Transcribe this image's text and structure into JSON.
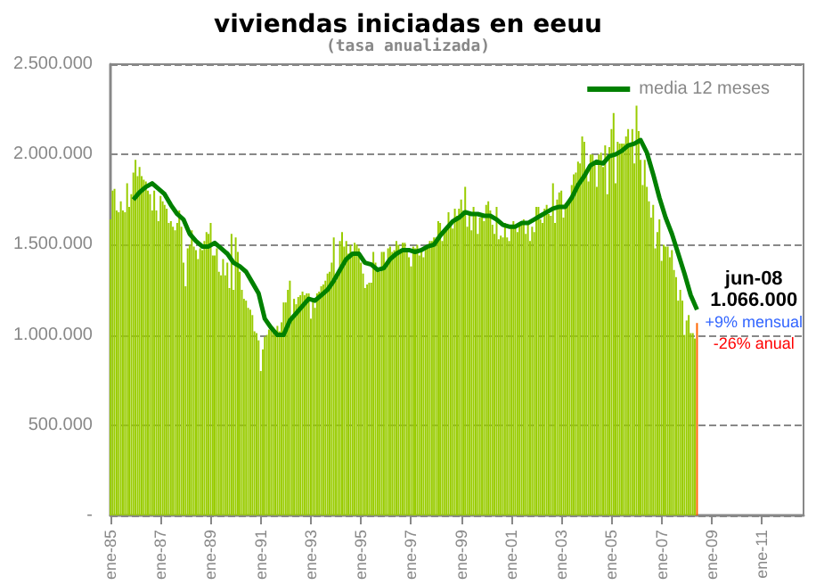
{
  "chart_data": {
    "type": "bar",
    "title": "viviendas iniciadas en eeuu",
    "subtitle": "(tasa anualizada)",
    "x": [
      "1985-01",
      "1985-02",
      "1985-03",
      "1985-04",
      "1985-05",
      "1985-06",
      "1985-07",
      "1985-08",
      "1985-09",
      "1985-10",
      "1985-11",
      "1985-12",
      "1986-01",
      "1986-02",
      "1986-03",
      "1986-04",
      "1986-05",
      "1986-06",
      "1986-07",
      "1986-08",
      "1986-09",
      "1986-10",
      "1986-11",
      "1986-12",
      "1987-01",
      "1987-02",
      "1987-03",
      "1987-04",
      "1987-05",
      "1987-06",
      "1987-07",
      "1987-08",
      "1987-09",
      "1987-10",
      "1987-11",
      "1987-12",
      "1988-01",
      "1988-02",
      "1988-03",
      "1988-04",
      "1988-05",
      "1988-06",
      "1988-07",
      "1988-08",
      "1988-09",
      "1988-10",
      "1988-11",
      "1988-12",
      "1989-01",
      "1989-02",
      "1989-03",
      "1989-04",
      "1989-05",
      "1989-06",
      "1989-07",
      "1989-08",
      "1989-09",
      "1989-10",
      "1989-11",
      "1989-12",
      "1990-01",
      "1990-02",
      "1990-03",
      "1990-04",
      "1990-05",
      "1990-06",
      "1990-07",
      "1990-08",
      "1990-09",
      "1990-10",
      "1990-11",
      "1990-12",
      "1991-01",
      "1991-02",
      "1991-03",
      "1991-04",
      "1991-05",
      "1991-06",
      "1991-07",
      "1991-08",
      "1991-09",
      "1991-10",
      "1991-11",
      "1991-12",
      "1992-01",
      "1992-02",
      "1992-03",
      "1992-04",
      "1992-05",
      "1992-06",
      "1992-07",
      "1992-08",
      "1992-09",
      "1992-10",
      "1992-11",
      "1992-12",
      "1993-01",
      "1993-02",
      "1993-03",
      "1993-04",
      "1993-05",
      "1993-06",
      "1993-07",
      "1993-08",
      "1993-09",
      "1993-10",
      "1993-11",
      "1993-12",
      "1994-01",
      "1994-02",
      "1994-03",
      "1994-04",
      "1994-05",
      "1994-06",
      "1994-07",
      "1994-08",
      "1994-09",
      "1994-10",
      "1994-11",
      "1994-12",
      "1995-01",
      "1995-02",
      "1995-03",
      "1995-04",
      "1995-05",
      "1995-06",
      "1995-07",
      "1995-08",
      "1995-09",
      "1995-10",
      "1995-11",
      "1995-12",
      "1996-01",
      "1996-02",
      "1996-03",
      "1996-04",
      "1996-05",
      "1996-06",
      "1996-07",
      "1996-08",
      "1996-09",
      "1996-10",
      "1996-11",
      "1996-12",
      "1997-01",
      "1997-02",
      "1997-03",
      "1997-04",
      "1997-05",
      "1997-06",
      "1997-07",
      "1997-08",
      "1997-09",
      "1997-10",
      "1997-11",
      "1997-12",
      "1998-01",
      "1998-02",
      "1998-03",
      "1998-04",
      "1998-05",
      "1998-06",
      "1998-07",
      "1998-08",
      "1998-09",
      "1998-10",
      "1998-11",
      "1998-12",
      "1999-01",
      "1999-02",
      "1999-03",
      "1999-04",
      "1999-05",
      "1999-06",
      "1999-07",
      "1999-08",
      "1999-09",
      "1999-10",
      "1999-11",
      "1999-12",
      "2000-01",
      "2000-02",
      "2000-03",
      "2000-04",
      "2000-05",
      "2000-06",
      "2000-07",
      "2000-08",
      "2000-09",
      "2000-10",
      "2000-11",
      "2000-12",
      "2001-01",
      "2001-02",
      "2001-03",
      "2001-04",
      "2001-05",
      "2001-06",
      "2001-07",
      "2001-08",
      "2001-09",
      "2001-10",
      "2001-11",
      "2001-12",
      "2002-01",
      "2002-02",
      "2002-03",
      "2002-04",
      "2002-05",
      "2002-06",
      "2002-07",
      "2002-08",
      "2002-09",
      "2002-10",
      "2002-11",
      "2002-12",
      "2003-01",
      "2003-02",
      "2003-03",
      "2003-04",
      "2003-05",
      "2003-06",
      "2003-07",
      "2003-08",
      "2003-09",
      "2003-10",
      "2003-11",
      "2003-12",
      "2004-01",
      "2004-02",
      "2004-03",
      "2004-04",
      "2004-05",
      "2004-06",
      "2004-07",
      "2004-08",
      "2004-09",
      "2004-10",
      "2004-11",
      "2004-12",
      "2005-01",
      "2005-02",
      "2005-03",
      "2005-04",
      "2005-05",
      "2005-06",
      "2005-07",
      "2005-08",
      "2005-09",
      "2005-10",
      "2005-11",
      "2005-12",
      "2006-01",
      "2006-02",
      "2006-03",
      "2006-04",
      "2006-05",
      "2006-06",
      "2006-07",
      "2006-08",
      "2006-09",
      "2006-10",
      "2006-11",
      "2006-12",
      "2007-01",
      "2007-02",
      "2007-03",
      "2007-04",
      "2007-05",
      "2007-06",
      "2007-07",
      "2007-08",
      "2007-09",
      "2007-10",
      "2007-11",
      "2007-12",
      "2008-01",
      "2008-02",
      "2008-03",
      "2008-04",
      "2008-05"
    ],
    "series": [
      {
        "color": "#99cc00",
        "values": [
          1640000,
          1800000,
          1810000,
          1690000,
          1680000,
          1740000,
          1690000,
          1680000,
          1840000,
          1710000,
          1780000,
          1900000,
          1970000,
          1880000,
          1930000,
          1880000,
          1860000,
          1850000,
          1800000,
          1780000,
          1690000,
          1800000,
          1690000,
          1630000,
          1770000,
          1740000,
          1720000,
          1700000,
          1620000,
          1630000,
          1600000,
          1580000,
          1620000,
          1690000,
          1600000,
          1400000,
          1270000,
          1480000,
          1500000,
          1580000,
          1490000,
          1470000,
          1420000,
          1480000,
          1470000,
          1520000,
          1570000,
          1560000,
          1620000,
          1440000,
          1440000,
          1480000,
          1350000,
          1330000,
          1420000,
          1330000,
          1400000,
          1260000,
          1560000,
          1250000,
          1540000,
          1460000,
          1350000,
          1250000,
          1200000,
          1190000,
          1150000,
          1140000,
          1110000,
          1020000,
          1010000,
          970000,
          800000,
          920000,
          990000,
          1000000,
          1030000,
          1050000,
          1040000,
          1020000,
          1050000,
          1020000,
          1070000,
          1180000,
          1180000,
          1250000,
          1300000,
          1100000,
          1200000,
          1170000,
          1210000,
          1220000,
          1240000,
          1220000,
          1230000,
          1230000,
          1090000,
          1200000,
          1150000,
          1230000,
          1240000,
          1270000,
          1280000,
          1300000,
          1340000,
          1350000,
          1400000,
          1540000,
          1300000,
          1350000,
          1520000,
          1570000,
          1490000,
          1520000,
          1450000,
          1500000,
          1460000,
          1510000,
          1500000,
          1480000,
          1400000,
          1340000,
          1260000,
          1280000,
          1290000,
          1290000,
          1460000,
          1400000,
          1370000,
          1350000,
          1460000,
          1460000,
          1380000,
          1480000,
          1490000,
          1460000,
          1470000,
          1520000,
          1500000,
          1460000,
          1510000,
          1510000,
          1470000,
          1430000,
          1380000,
          1490000,
          1480000,
          1500000,
          1440000,
          1480000,
          1430000,
          1490000,
          1490000,
          1520000,
          1520000,
          1540000,
          1540000,
          1630000,
          1620000,
          1520000,
          1570000,
          1590000,
          1680000,
          1610000,
          1590000,
          1700000,
          1660000,
          1700000,
          1750000,
          1690000,
          1820000,
          1600000,
          1680000,
          1580000,
          1710000,
          1680000,
          1560000,
          1650000,
          1650000,
          1630000,
          1720000,
          1740000,
          1690000,
          1610000,
          1560000,
          1710000,
          1530000,
          1550000,
          1540000,
          1620000,
          1540000,
          1520000,
          1600000,
          1630000,
          1610000,
          1570000,
          1620000,
          1630000,
          1640000,
          1560000,
          1610000,
          1520000,
          1600000,
          1570000,
          1710000,
          1710000,
          1640000,
          1620000,
          1700000,
          1720000,
          1670000,
          1660000,
          1840000,
          1620000,
          1750000,
          1790000,
          1800000,
          1650000,
          1730000,
          1720000,
          1740000,
          1830000,
          1890000,
          1900000,
          1960000,
          1950000,
          2100000,
          2070000,
          1910000,
          1850000,
          2000000,
          2000000,
          1960000,
          1820000,
          2000000,
          2010000,
          1930000,
          2050000,
          1780000,
          2040000,
          2140000,
          2230000,
          1840000,
          2070000,
          2060000,
          2060000,
          2060000,
          2100000,
          2140000,
          2060000,
          2140000,
          1950000,
          2270000,
          2130000,
          1970000,
          1830000,
          1970000,
          1820000,
          1740000,
          1650000,
          1720000,
          1480000,
          1570000,
          1640000,
          1410000,
          1500000,
          1490000,
          1490000,
          1430000,
          1470000,
          1360000,
          1320000,
          1190000,
          1250000,
          1190000,
          1000000,
          1080000,
          1110000,
          1010000,
          1010000,
          980000
        ]
      },
      {
        "color": "#ff6600",
        "x": [
          "2008-06"
        ],
        "values": [
          1066000
        ]
      },
      {
        "type": "line",
        "name": "media 12 meses",
        "color": "#008000",
        "x": [
          "1985-12",
          "1986-03",
          "1986-06",
          "1986-09",
          "1986-12",
          "1987-03",
          "1987-06",
          "1987-09",
          "1987-12",
          "1988-03",
          "1988-06",
          "1988-09",
          "1988-12",
          "1989-03",
          "1989-06",
          "1989-09",
          "1989-12",
          "1990-03",
          "1990-06",
          "1990-09",
          "1990-12",
          "1991-03",
          "1991-06",
          "1991-09",
          "1991-12",
          "1992-03",
          "1992-06",
          "1992-09",
          "1992-12",
          "1993-03",
          "1993-06",
          "1993-09",
          "1993-12",
          "1994-03",
          "1994-06",
          "1994-09",
          "1994-12",
          "1995-03",
          "1995-06",
          "1995-09",
          "1995-12",
          "1996-03",
          "1996-06",
          "1996-09",
          "1996-12",
          "1997-03",
          "1997-06",
          "1997-09",
          "1997-12",
          "1998-03",
          "1998-06",
          "1998-09",
          "1998-12",
          "1999-03",
          "1999-06",
          "1999-09",
          "1999-12",
          "2000-03",
          "2000-06",
          "2000-09",
          "2000-12",
          "2001-03",
          "2001-06",
          "2001-09",
          "2001-12",
          "2002-03",
          "2002-06",
          "2002-09",
          "2002-12",
          "2003-03",
          "2003-06",
          "2003-09",
          "2003-12",
          "2004-03",
          "2004-06",
          "2004-09",
          "2004-12",
          "2005-03",
          "2005-06",
          "2005-09",
          "2005-12",
          "2006-03",
          "2006-06",
          "2006-09",
          "2006-12",
          "2007-03",
          "2007-06",
          "2007-09",
          "2007-12",
          "2008-03",
          "2008-06"
        ],
        "values": [
          1750000,
          1790000,
          1820000,
          1840000,
          1810000,
          1780000,
          1720000,
          1670000,
          1640000,
          1560000,
          1520000,
          1490000,
          1490000,
          1510000,
          1480000,
          1450000,
          1400000,
          1380000,
          1350000,
          1290000,
          1230000,
          1090000,
          1040000,
          1000000,
          1000000,
          1080000,
          1120000,
          1160000,
          1200000,
          1190000,
          1220000,
          1250000,
          1300000,
          1360000,
          1420000,
          1450000,
          1450000,
          1400000,
          1390000,
          1360000,
          1370000,
          1420000,
          1450000,
          1470000,
          1470000,
          1460000,
          1470000,
          1490000,
          1500000,
          1550000,
          1590000,
          1630000,
          1650000,
          1680000,
          1670000,
          1670000,
          1660000,
          1660000,
          1640000,
          1610000,
          1600000,
          1600000,
          1620000,
          1620000,
          1640000,
          1660000,
          1680000,
          1700000,
          1710000,
          1710000,
          1760000,
          1830000,
          1880000,
          1940000,
          1960000,
          1950000,
          1990000,
          2000000,
          2020000,
          2050000,
          2060000,
          2080000,
          2010000,
          1890000,
          1760000,
          1650000,
          1560000,
          1450000,
          1340000,
          1220000,
          1140000
        ]
      }
    ],
    "xlim": [
      "1985-01",
      "2012-09"
    ],
    "xticks": [
      {
        "value": "1985-01",
        "label": "ene-85"
      },
      {
        "value": "1987-01",
        "label": "ene-87"
      },
      {
        "value": "1989-01",
        "label": "ene-89"
      },
      {
        "value": "1991-01",
        "label": "ene-91"
      },
      {
        "value": "1993-01",
        "label": "ene-93"
      },
      {
        "value": "1995-01",
        "label": "ene-95"
      },
      {
        "value": "1997-01",
        "label": "ene-97"
      },
      {
        "value": "1999-01",
        "label": "ene-99"
      },
      {
        "value": "2001-01",
        "label": "ene-01"
      },
      {
        "value": "2003-01",
        "label": "ene-03"
      },
      {
        "value": "2005-01",
        "label": "ene-05"
      },
      {
        "value": "2007-01",
        "label": "ene-07"
      },
      {
        "value": "2009-01",
        "label": "ene-09"
      },
      {
        "value": "2011-01",
        "label": "ene-11"
      }
    ],
    "ylim": [
      0,
      2500000
    ],
    "yticks": [
      {
        "value": 0,
        "label": "-"
      },
      {
        "value": 500000,
        "label": "500.000"
      },
      {
        "value": 1000000,
        "label": "1.000.000"
      },
      {
        "value": 1500000,
        "label": "1.500.000"
      },
      {
        "value": 2000000,
        "label": "2.000.000"
      },
      {
        "value": 2500000,
        "label": "2.500.000"
      }
    ],
    "grid": "y",
    "legend": "top right",
    "marker": "none",
    "annotations": [
      {
        "text": "jun-08",
        "x": "2008-06",
        "y": 1066000
      },
      "1.066.000",
      "+9% mensual",
      "-26% anual"
    ]
  }
}
